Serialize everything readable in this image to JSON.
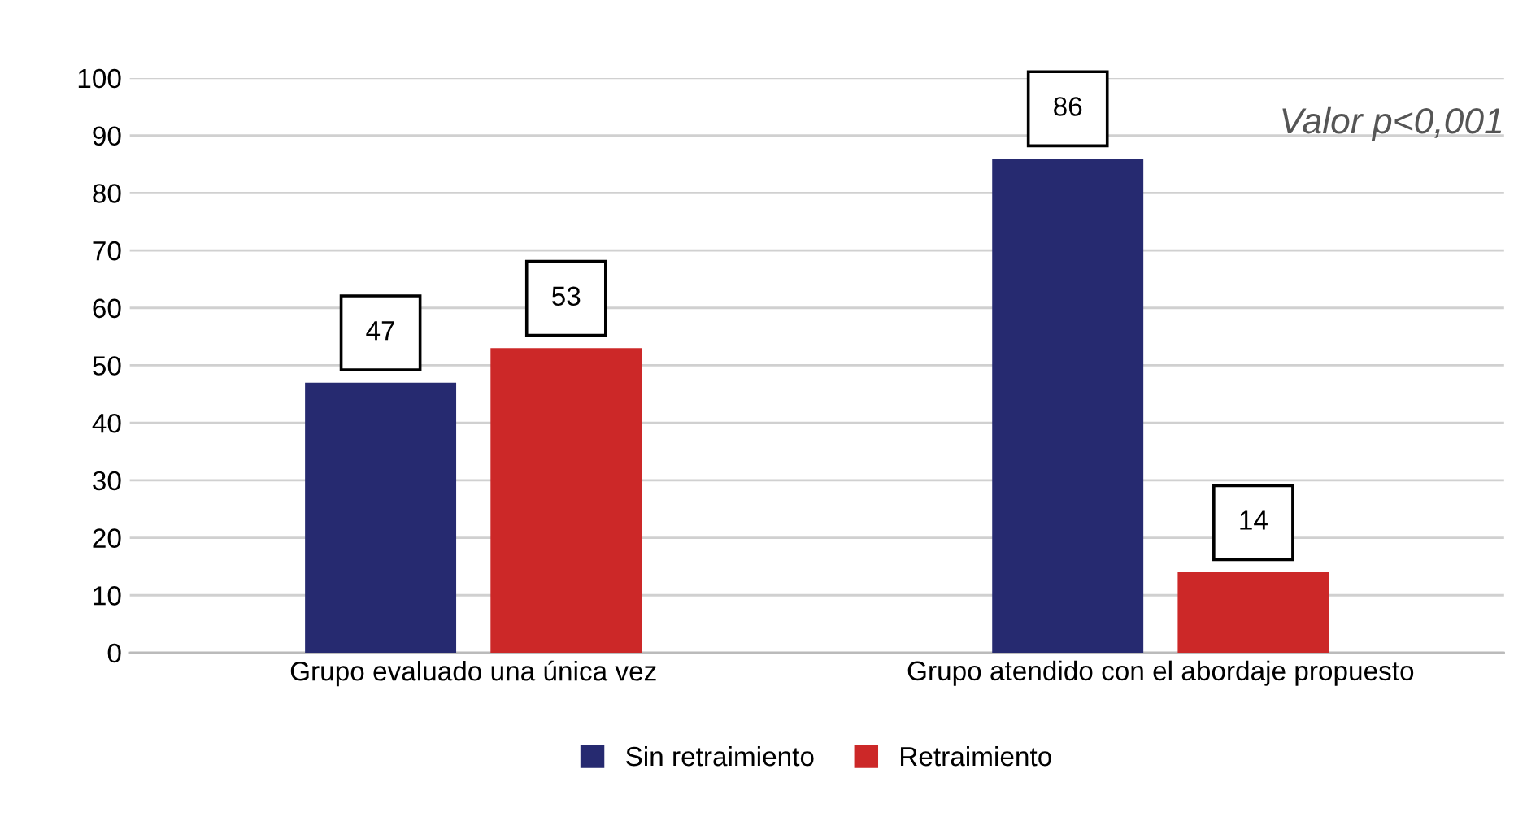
{
  "chart_data": {
    "type": "bar",
    "categories": [
      "Grupo evaluado una única vez",
      "Grupo atendido con el abordaje propuesto"
    ],
    "series": [
      {
        "name": "Sin retraimiento",
        "color": "#262a70",
        "values": [
          47,
          86
        ]
      },
      {
        "name": "Retraimiento",
        "color": "#cc2828",
        "values": [
          53,
          14
        ]
      }
    ],
    "ylim": [
      0,
      100
    ],
    "yticks": [
      0,
      10,
      20,
      30,
      40,
      50,
      60,
      70,
      80,
      90,
      100
    ],
    "grid": "y",
    "legend": "bottom",
    "data_labels": true,
    "annotations": [
      "Valor p<0,001"
    ]
  }
}
